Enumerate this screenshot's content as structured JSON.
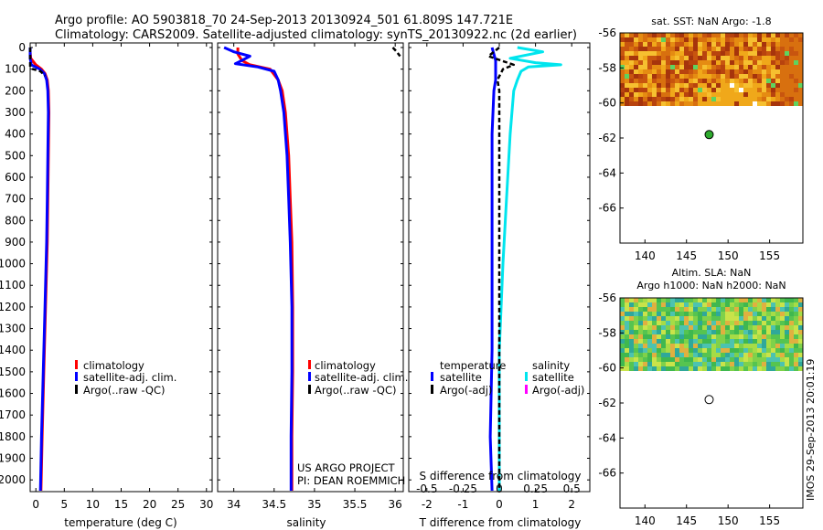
{
  "header": {
    "line1": "Argo profile: AO 5903818_70 24-Sep-2013 20130924_501 61.809S 147.721E",
    "line2": "Climatology: CARS2009. Satellite-adjusted climatology: synTS_20130922.nc (2d earlier)"
  },
  "colors": {
    "climatology": "#ff0000",
    "satellite": "#0000ff",
    "argo": "#000000",
    "sal_satellite": "#00e5ee",
    "sal_argo": "#ff00ff"
  },
  "legend_profiles": {
    "items": [
      {
        "label": "climatology",
        "color": "#ff0000"
      },
      {
        "label": "satellite-adj. clim.",
        "color": "#0000ff"
      },
      {
        "label": "Argo(..raw -QC)",
        "color": "#000000"
      }
    ]
  },
  "legend_diff": {
    "temp_title": "temperature",
    "sal_title": "salinity",
    "temp_items": [
      {
        "label": "satellite",
        "color": "#0000ff"
      },
      {
        "label": "Argo(-adj)",
        "color": "#000000"
      }
    ],
    "sal_items": [
      {
        "label": "satellite",
        "color": "#00e5ee"
      },
      {
        "label": "Argo(-adj)",
        "color": "#ff00ff"
      }
    ]
  },
  "project_note": {
    "line1": "US ARGO PROJECT",
    "line2": "PI: DEAN ROEMMICH"
  },
  "diff_top_label": "S difference from climatology",
  "sst_title": "sat. SST: NaN Argo: -1.8",
  "sla_title_1": "Altim. SLA: NaN",
  "sla_title_2": "Argo h1000: NaN h2000: NaN",
  "imos_stamp": "IMOS 29-Sep-2013 20:01:19",
  "chart_data": [
    {
      "type": "line",
      "xlabel": "temperature (deg C)",
      "ylabel": "",
      "xlim": [
        -1,
        31
      ],
      "ylim": [
        2050,
        0
      ],
      "xticks": [
        "0",
        "5",
        "10",
        "15",
        "20",
        "25",
        "30"
      ],
      "yticks": [
        "0",
        "100",
        "200",
        "300",
        "400",
        "500",
        "600",
        "700",
        "800",
        "900",
        "1000",
        "1100",
        "1200",
        "1300",
        "1400",
        "1500",
        "1600",
        "1700",
        "1800",
        "1900",
        "2000"
      ],
      "series": [
        {
          "name": "climatology",
          "depth": [
            0,
            20,
            50,
            80,
            100,
            120,
            150,
            200,
            300,
            500,
            700,
            900,
            1200,
            1500,
            1800,
            2050
          ],
          "values": [
            -1.2,
            -1.1,
            -0.9,
            0.0,
            1.0,
            1.6,
            2.0,
            2.2,
            2.3,
            2.2,
            2.1,
            2.0,
            1.7,
            1.4,
            1.1,
            0.9
          ]
        },
        {
          "name": "satellite-adj. clim.",
          "depth": [
            0,
            20,
            50,
            80,
            100,
            120,
            150,
            200,
            300,
            500,
            700,
            900,
            1200,
            1500,
            1800,
            2050
          ],
          "values": [
            -1.5,
            -1.5,
            -1.4,
            -0.8,
            0.7,
            1.5,
            1.9,
            2.1,
            2.2,
            2.1,
            2.0,
            1.9,
            1.6,
            1.3,
            1.0,
            0.8
          ]
        },
        {
          "name": "Argo(..raw -QC)",
          "depth": [
            0,
            30,
            60,
            90,
            100,
            110,
            130
          ],
          "values": [
            -1.8,
            -1.8,
            -1.8,
            -1.7,
            -0.5,
            0.8,
            1.6
          ]
        }
      ]
    },
    {
      "type": "line",
      "xlabel": "salinity",
      "xlim": [
        33.8,
        36.1
      ],
      "ylim": [
        2050,
        0
      ],
      "xticks": [
        "34",
        "34.5",
        "35",
        "35.5",
        "36"
      ],
      "series": [
        {
          "name": "climatology",
          "depth": [
            0,
            30,
            60,
            80,
            100,
            150,
            200,
            300,
            500,
            700,
            900,
            1200,
            1500,
            1800,
            2050
          ],
          "values": [
            34.05,
            34.05,
            34.1,
            34.2,
            34.45,
            34.55,
            34.6,
            34.64,
            34.68,
            34.7,
            34.72,
            34.73,
            34.73,
            34.72,
            34.72
          ]
        },
        {
          "name": "satellite-adj. clim.",
          "depth": [
            0,
            20,
            40,
            60,
            75,
            90,
            110,
            150,
            200,
            300,
            500,
            700,
            900,
            1200,
            1500,
            1800,
            2050
          ],
          "values": [
            33.88,
            34.0,
            34.2,
            34.1,
            34.02,
            34.3,
            34.5,
            34.55,
            34.58,
            34.62,
            34.66,
            34.68,
            34.7,
            34.72,
            34.72,
            34.71,
            34.71
          ]
        },
        {
          "name": "Argo(..raw -QC)",
          "depth": [
            0,
            20,
            40
          ],
          "values": [
            35.97,
            36.02,
            36.06
          ]
        }
      ]
    },
    {
      "type": "line",
      "xlabel": "T difference from climatology",
      "top_label": "S difference from climatology",
      "xlim": [
        -2.5,
        2.5
      ],
      "ylim": [
        2050,
        0
      ],
      "xticks": [
        "-2",
        "-1",
        "0",
        "1",
        "2"
      ],
      "top_xticks": [
        "-0.5",
        "-0.25",
        "0",
        "0.25",
        "0.5"
      ],
      "series": [
        {
          "name": "temperature satellite",
          "depth": [
            0,
            60,
            100,
            150,
            200,
            400,
            700,
            1000,
            1400,
            1800,
            2050
          ],
          "values": [
            -0.2,
            -0.1,
            -0.1,
            -0.1,
            -0.15,
            -0.2,
            -0.2,
            -0.2,
            -0.2,
            -0.25,
            -0.2
          ]
        },
        {
          "name": "salinity satellite",
          "depth": [
            0,
            20,
            50,
            70,
            80,
            90,
            110,
            150,
            200,
            400,
            700,
            1000,
            1400,
            1800,
            2050
          ],
          "values": [
            0.5,
            1.2,
            0.3,
            1.0,
            1.7,
            0.8,
            0.6,
            0.5,
            0.4,
            0.3,
            0.2,
            0.1,
            0.0,
            0.0,
            0.0
          ]
        },
        {
          "name": "temperature Argo(-adj)",
          "depth": [
            0,
            40,
            80,
            100,
            150,
            200,
            400,
            700,
            1000,
            1400,
            1800,
            2050
          ],
          "values": [
            0.0,
            -0.3,
            0.4,
            0.1,
            -0.05,
            0.0,
            0.0,
            0.0,
            0.0,
            0.0,
            0.0,
            0.0
          ]
        }
      ]
    },
    {
      "type": "heatmap",
      "title": "sat. SST: NaN Argo: -1.8",
      "xlim": [
        137,
        159
      ],
      "ylim": [
        -68,
        -56
      ],
      "xticks": [
        "140",
        "145",
        "150",
        "155"
      ],
      "yticks": [
        "-56",
        "-58",
        "-60",
        "-62",
        "-64",
        "-66"
      ],
      "data_extent_lat": [
        -60,
        -56
      ],
      "argo_position": {
        "lon": 147.721,
        "lat": -61.809
      }
    },
    {
      "type": "heatmap",
      "title": "Altim. SLA: NaN",
      "xlim": [
        137,
        159
      ],
      "ylim": [
        -68,
        -56
      ],
      "xticks": [
        "140",
        "145",
        "150",
        "155"
      ],
      "yticks": [
        "-56",
        "-58",
        "-60",
        "-62",
        "-64",
        "-66"
      ],
      "data_extent_lat": [
        -60,
        -56
      ],
      "argo_position": {
        "lon": 147.721,
        "lat": -61.809
      }
    }
  ]
}
